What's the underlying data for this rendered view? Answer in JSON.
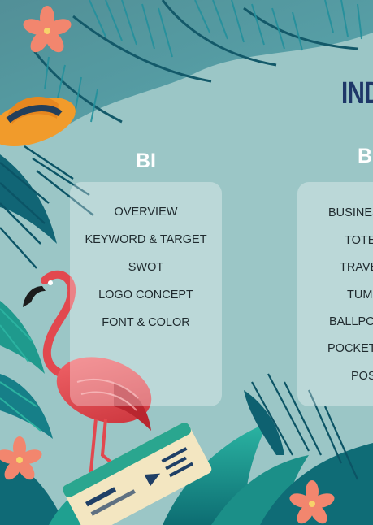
{
  "page": {
    "index_title": "IND",
    "bi": {
      "heading": "BI",
      "items": [
        "OVERVIEW",
        "KEYWORD & TARGET",
        "SWOT",
        "LOGO CONCEPT",
        "FONT & COLOR"
      ]
    },
    "b2": {
      "heading": "B",
      "items": [
        "BUSINES",
        "TOTE",
        "TRAVE",
        "TUMI",
        "BALLPO",
        "POCKET",
        "POS"
      ]
    }
  }
}
